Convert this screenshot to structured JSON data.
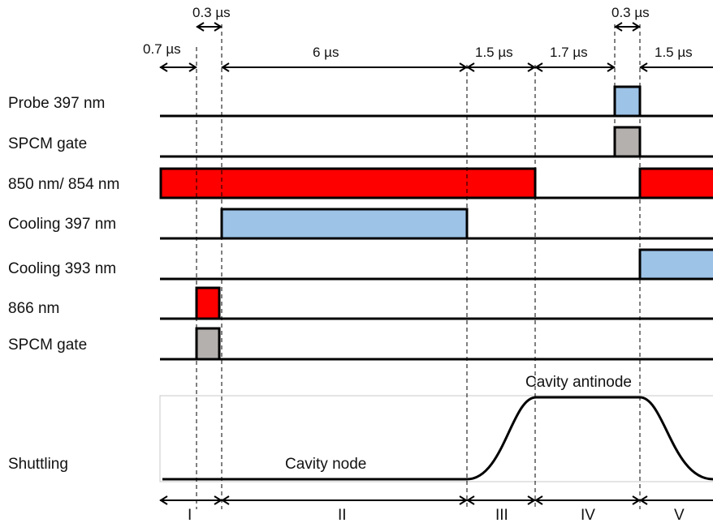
{
  "colors": {
    "red": "#ff0000",
    "blue": "#9dc3e6",
    "gray": "#b4b0ae",
    "line": "#000000"
  },
  "rows": [
    {
      "id": "probe-397",
      "label": "Probe 397 nm"
    },
    {
      "id": "spcm-gate-1",
      "label": "SPCM gate"
    },
    {
      "id": "repump-850-854",
      "label": "850 nm/ 854 nm"
    },
    {
      "id": "cooling-397",
      "label": "Cooling 397 nm"
    },
    {
      "id": "cooling-393",
      "label": "Cooling 393 nm"
    },
    {
      "id": "repump-866",
      "label": "866 nm"
    },
    {
      "id": "spcm-gate-2",
      "label": "SPCM gate"
    },
    {
      "id": "shuttling",
      "label": "Shuttling"
    }
  ],
  "durations": {
    "top_a": "0.3 µs",
    "top_b": "0.3 µs",
    "d0": "0.7 µs",
    "d1": "6 µs",
    "d2": "1.5 µs",
    "d3": "1.7 µs",
    "d4": "1.5 µs"
  },
  "shuttling": {
    "node_label": "Cavity node",
    "antinode_label": "Cavity antinode"
  },
  "phases": [
    "I",
    "II",
    "III",
    "IV",
    "V"
  ]
}
